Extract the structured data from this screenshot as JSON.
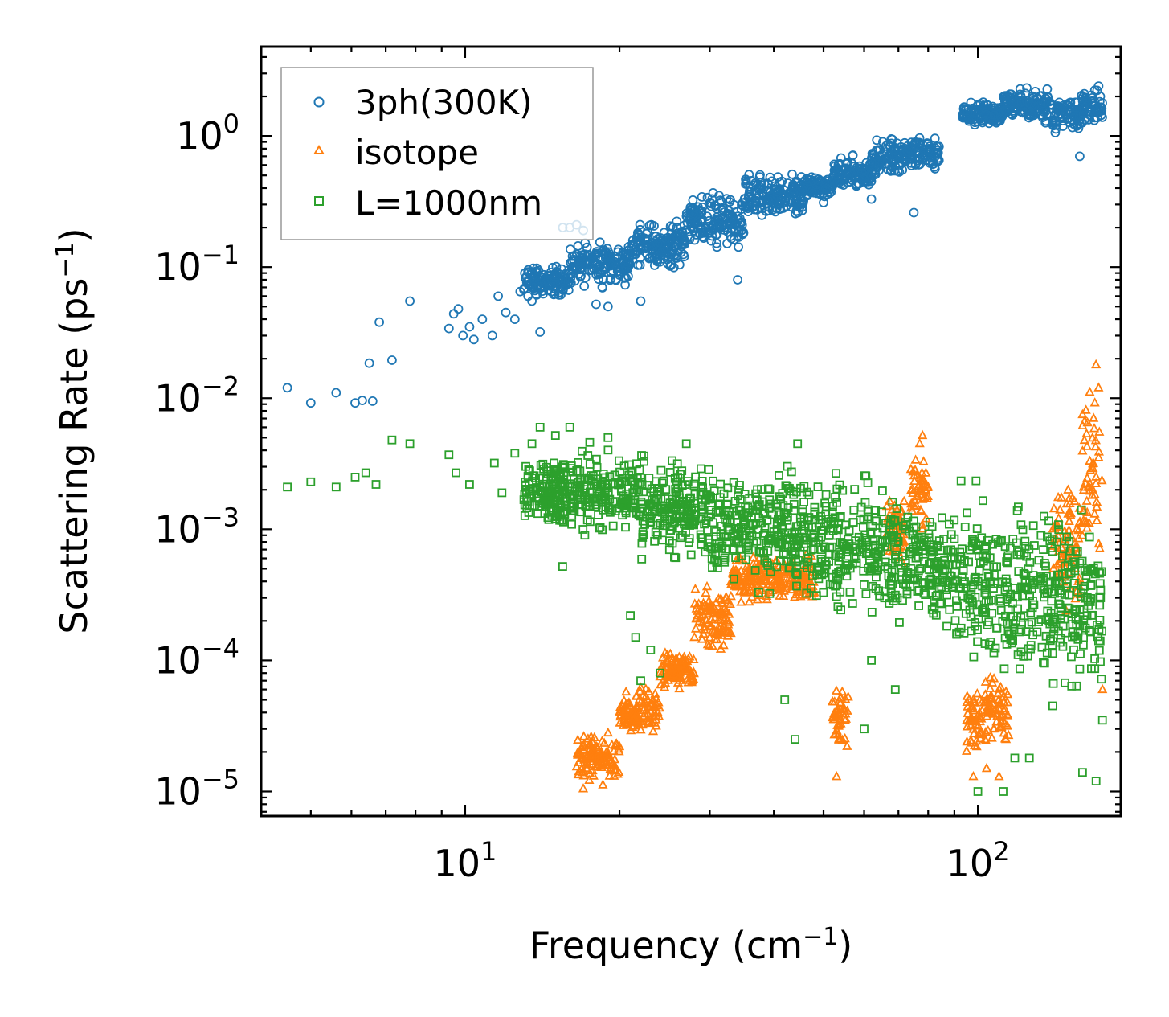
{
  "chart_data": {
    "type": "scatter",
    "xscale": "log",
    "yscale": "log",
    "xlim": [
      4.0,
      190
    ],
    "ylim": [
      6.5e-06,
      4.8
    ],
    "xlabel": {
      "main": "Frequency (cm",
      "sup": "−1",
      "close": ")"
    },
    "ylabel": {
      "main": "Scattering Rate (ps",
      "sup": "−1",
      "close": ")"
    },
    "x_ticks": [
      {
        "value": 10,
        "base": "10",
        "exp": "1"
      },
      {
        "value": 100,
        "base": "10",
        "exp": "2"
      }
    ],
    "y_ticks": [
      {
        "value": 1,
        "base": "10",
        "exp": "0"
      },
      {
        "value": 0.1,
        "base": "10",
        "exp": "−1"
      },
      {
        "value": 0.01,
        "base": "10",
        "exp": "−2"
      },
      {
        "value": 0.001,
        "base": "10",
        "exp": "−3"
      },
      {
        "value": 0.0001,
        "base": "10",
        "exp": "−4"
      },
      {
        "value": 1e-05,
        "base": "10",
        "exp": "−5"
      }
    ],
    "legend_position": "top-left",
    "series": [
      {
        "name": "3ph(300K)",
        "marker": "circle",
        "color": "#1f77b4",
        "points": [
          [
            4.5,
            0.012
          ],
          [
            5.0,
            0.0092
          ],
          [
            5.6,
            0.011
          ],
          [
            6.1,
            0.0092
          ],
          [
            6.3,
            0.0096
          ],
          [
            6.5,
            0.0185
          ],
          [
            6.6,
            0.0095
          ],
          [
            6.8,
            0.038
          ],
          [
            7.2,
            0.0195
          ],
          [
            7.8,
            0.055
          ],
          [
            9.3,
            0.034
          ],
          [
            9.5,
            0.044
          ],
          [
            9.7,
            0.048
          ],
          [
            9.9,
            0.03
          ],
          [
            10.2,
            0.035
          ],
          [
            10.4,
            0.028
          ],
          [
            10.8,
            0.04
          ],
          [
            11.3,
            0.03
          ],
          [
            11.6,
            0.06
          ],
          [
            12.0,
            0.045
          ],
          [
            12.5,
            0.04
          ],
          [
            12.8,
            0.065
          ],
          [
            13.5,
            0.055
          ],
          [
            14.0,
            0.032
          ],
          [
            15.5,
            0.2
          ],
          [
            16.0,
            0.2
          ],
          [
            16.5,
            0.21
          ],
          [
            17.0,
            0.19
          ],
          [
            18.0,
            0.052
          ],
          [
            19.0,
            0.05
          ],
          [
            22.0,
            0.055
          ],
          [
            26.0,
            0.13
          ],
          [
            34.0,
            0.08
          ],
          [
            38.0,
            0.28
          ],
          [
            50.0,
            0.31
          ],
          [
            62.0,
            0.33
          ],
          [
            75.0,
            0.26
          ],
          [
            95.0,
            1.6
          ],
          [
            140.0,
            1.3
          ],
          [
            158.0,
            0.7
          ],
          [
            172.0,
            2.4
          ]
        ],
        "bands": [
          {
            "x": [
              13.0,
              16.0
            ],
            "low": 0.055,
            "high": 0.11
          },
          {
            "x": [
              16.0,
              21.0
            ],
            "low": 0.065,
            "high": 0.17
          },
          {
            "x": [
              21.0,
              27.0
            ],
            "low": 0.09,
            "high": 0.25
          },
          {
            "x": [
              27.0,
              35.0
            ],
            "low": 0.12,
            "high": 0.4
          },
          {
            "x": [
              35.0,
              46.0
            ],
            "low": 0.2,
            "high": 0.58
          },
          {
            "x": [
              46.0,
              52.0
            ],
            "low": 0.32,
            "high": 0.52
          },
          {
            "x": [
              52.0,
              62.0
            ],
            "low": 0.35,
            "high": 0.75
          },
          {
            "x": [
              62.0,
              72.0
            ],
            "low": 0.45,
            "high": 1.05
          },
          {
            "x": [
              72.0,
              84.0
            ],
            "low": 0.5,
            "high": 1.12
          },
          {
            "x": [
              93.0,
              112.0
            ],
            "low": 1.1,
            "high": 1.95
          },
          {
            "x": [
              112.0,
              140.0
            ],
            "low": 1.2,
            "high": 2.5
          },
          {
            "x": [
              140.0,
              160.0
            ],
            "low": 0.95,
            "high": 2.2
          },
          {
            "x": [
              160.0,
              175.0
            ],
            "low": 1.2,
            "high": 2.4
          }
        ]
      },
      {
        "name": "isotope",
        "marker": "triangle",
        "color": "#ff7f0e",
        "points": [
          [
            17.0,
            1.05e-05
          ],
          [
            18.0,
            1.55e-05
          ],
          [
            19.0,
            2.8e-05
          ],
          [
            20.0,
            2.2e-05
          ],
          [
            21.0,
            4.5e-05
          ],
          [
            22.0,
            6.2e-05
          ],
          [
            24.0,
            7.5e-05
          ],
          [
            26.0,
            9.5e-05
          ],
          [
            28.0,
            0.00015
          ],
          [
            30.0,
            0.00025
          ],
          [
            53.0,
            1.3e-05
          ],
          [
            53.0,
            4e-05
          ],
          [
            54.0,
            2.5e-05
          ],
          [
            77.0,
            0.0045
          ],
          [
            78.0,
            0.0052
          ],
          [
            98.0,
            1.3e-05
          ],
          [
            99.0,
            3.5e-05
          ],
          [
            104.0,
            1.5e-05
          ],
          [
            110.0,
            1.3e-05
          ],
          [
            112.0,
            3.5e-05
          ],
          [
            160.0,
            0.0075
          ],
          [
            170.0,
            0.018
          ],
          [
            172.0,
            0.012
          ],
          [
            175.0,
            6e-05
          ]
        ],
        "bands": [
          {
            "x": [
              16.5,
              20.0
            ],
            "low": 1.05e-05,
            "high": 3e-05
          },
          {
            "x": [
              20.0,
              24.0
            ],
            "low": 2.5e-05,
            "high": 7e-05
          },
          {
            "x": [
              24.0,
              28.0
            ],
            "low": 5.5e-05,
            "high": 0.00013
          },
          {
            "x": [
              28.0,
              33.0
            ],
            "low": 0.0001,
            "high": 0.0004
          },
          {
            "x": [
              33.0,
              48.0
            ],
            "low": 0.00025,
            "high": 0.0007
          },
          {
            "x": [
              52.0,
              56.0
            ],
            "low": 1.5e-05,
            "high": 9e-05
          },
          {
            "x": [
              66.0,
              72.0
            ],
            "low": 0.0004,
            "high": 0.0025
          },
          {
            "x": [
              74.0,
              80.0
            ],
            "low": 0.0009,
            "high": 0.0045
          },
          {
            "x": [
              95.0,
              105.0
            ],
            "low": 1.5e-05,
            "high": 8e-05
          },
          {
            "x": [
              105.0,
              115.0
            ],
            "low": 1.8e-05,
            "high": 0.0001
          },
          {
            "x": [
              140.0,
              160.0
            ],
            "low": 0.00018,
            "high": 0.0035
          },
          {
            "x": [
              160.0,
              175.0
            ],
            "low": 0.0004,
            "high": 0.016
          }
        ]
      },
      {
        "name": "L=1000nm",
        "marker": "square",
        "color": "#2ca02c",
        "points": [
          [
            4.5,
            0.0021
          ],
          [
            5.0,
            0.0023
          ],
          [
            5.6,
            0.0021
          ],
          [
            6.1,
            0.0025
          ],
          [
            6.4,
            0.0027
          ],
          [
            6.7,
            0.0022
          ],
          [
            7.2,
            0.0048
          ],
          [
            7.8,
            0.0045
          ],
          [
            9.3,
            0.0037
          ],
          [
            9.6,
            0.0027
          ],
          [
            10.2,
            0.0022
          ],
          [
            11.4,
            0.0032
          ],
          [
            11.8,
            0.0019
          ],
          [
            12.5,
            0.0038
          ],
          [
            13.5,
            0.0045
          ],
          [
            14.0,
            0.006
          ],
          [
            15.0,
            0.0052
          ],
          [
            16.0,
            0.006
          ],
          [
            16.5,
            0.0028
          ],
          [
            15.5,
            0.00052
          ],
          [
            17.5,
            0.0046
          ],
          [
            19.0,
            0.005
          ],
          [
            21.0,
            0.00022
          ],
          [
            21.5,
            0.00015
          ],
          [
            22.0,
            7e-05
          ],
          [
            23.0,
            0.00012
          ],
          [
            24.0,
            8e-05
          ],
          [
            27.0,
            0.0045
          ],
          [
            44.0,
            2.5e-05
          ],
          [
            44.5,
            0.0045
          ],
          [
            42.0,
            5e-05
          ],
          [
            60.0,
            3e-05
          ],
          [
            62.0,
            0.0001
          ],
          [
            69.0,
            6e-05
          ],
          [
            100.0,
            1e-05
          ],
          [
            112.0,
            1e-05
          ],
          [
            118.0,
            1.8e-05
          ],
          [
            126.0,
            1.8e-05
          ],
          [
            140.0,
            4.5e-05
          ],
          [
            160.0,
            1.4e-05
          ],
          [
            170.0,
            1.2e-05
          ],
          [
            175.0,
            3.5e-05
          ]
        ],
        "bands": [
          {
            "x": [
              13.0,
              22.0
            ],
            "low": 0.0008,
            "high": 0.0045
          },
          {
            "x": [
              22.0,
              30.0
            ],
            "low": 0.0005,
            "high": 0.0042
          },
          {
            "x": [
              30.0,
              44.0
            ],
            "low": 0.0003,
            "high": 0.0035
          },
          {
            "x": [
              44.0,
              52.0
            ],
            "low": 0.0002,
            "high": 0.0032
          },
          {
            "x": [
              52.0,
              62.0
            ],
            "low": 0.00015,
            "high": 0.0035
          },
          {
            "x": [
              62.0,
              76.0
            ],
            "low": 0.00015,
            "high": 0.003
          },
          {
            "x": [
              76.0,
              90.0
            ],
            "low": 0.00012,
            "high": 0.0022
          },
          {
            "x": [
              90.0,
              110.0
            ],
            "low": 6e-05,
            "high": 0.0025
          },
          {
            "x": [
              110.0,
              140.0
            ],
            "low": 5e-05,
            "high": 0.0025
          },
          {
            "x": [
              140.0,
              175.0
            ],
            "low": 4e-05,
            "high": 0.002
          }
        ]
      }
    ]
  }
}
